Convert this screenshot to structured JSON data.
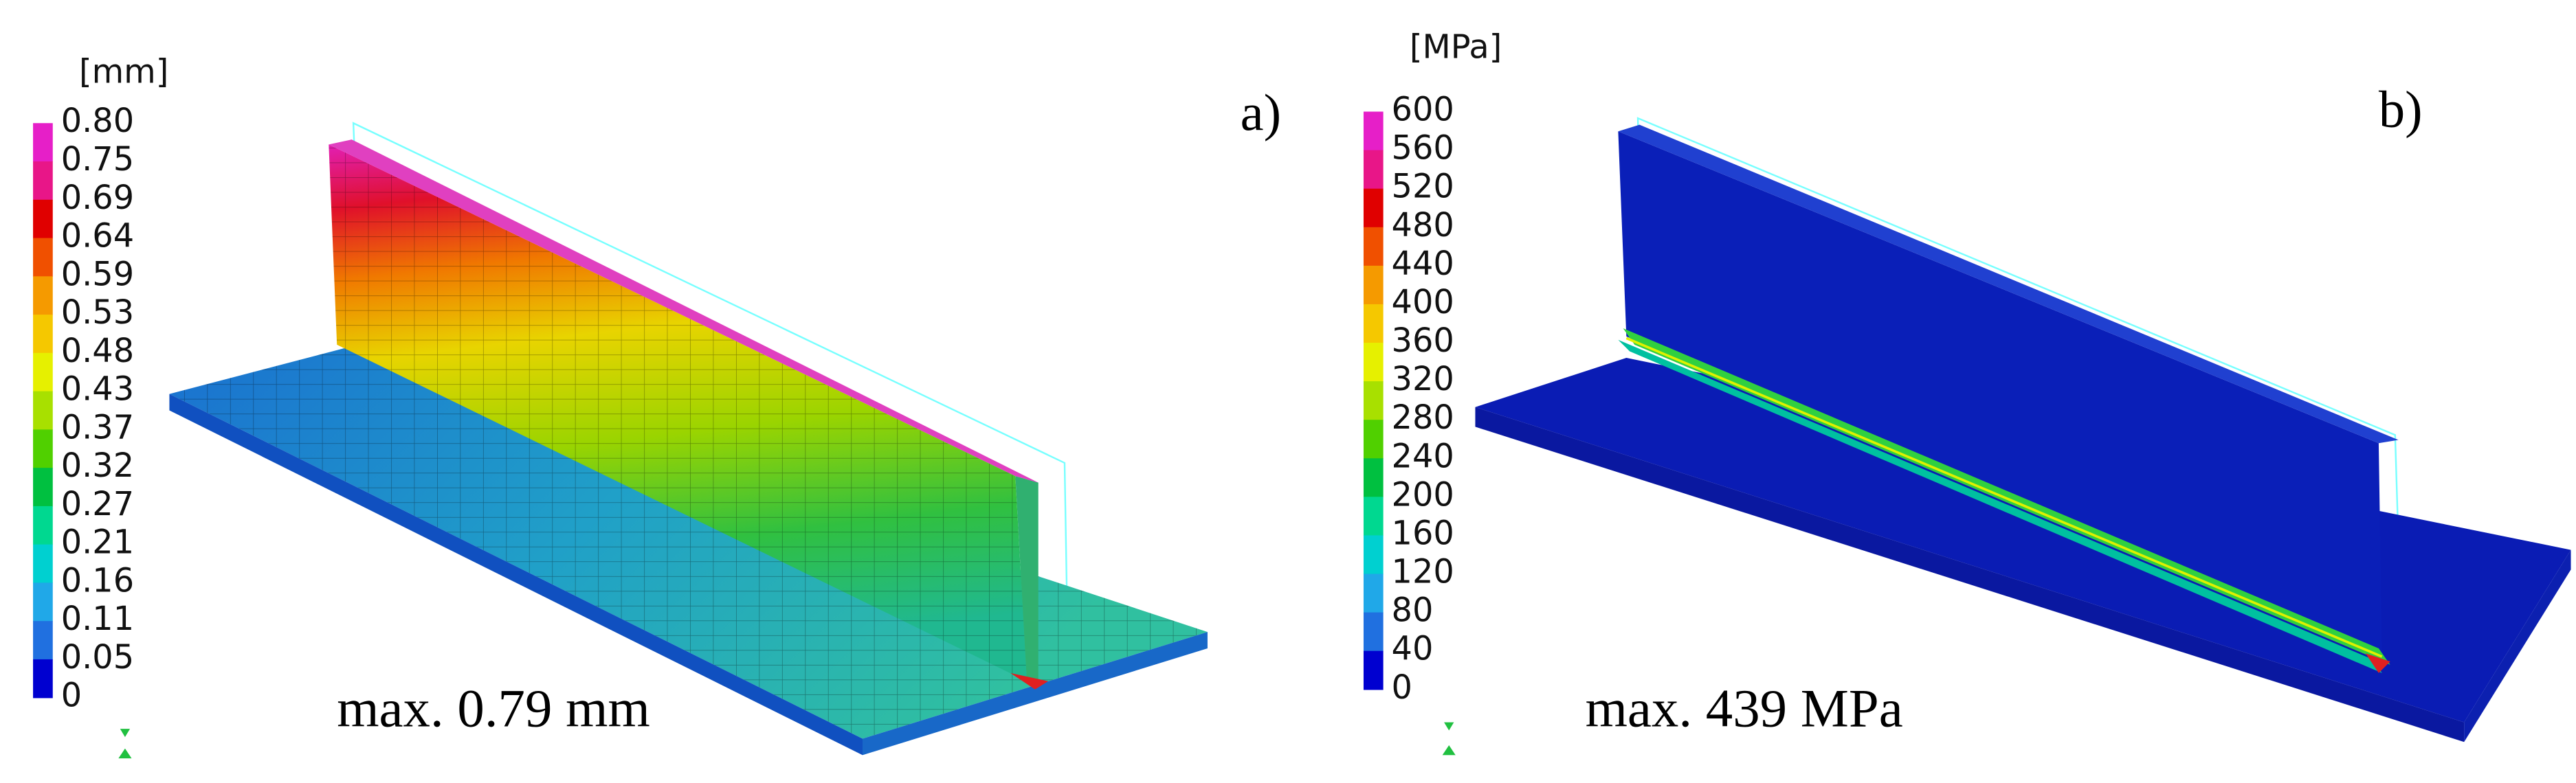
{
  "panels": [
    {
      "unit": "[mm]",
      "label": "a)",
      "annotation": "max. 0.79 mm",
      "legend_ticks": [
        "0.80",
        "0.75",
        "0.69",
        "0.64",
        "0.59",
        "0.53",
        "0.48",
        "0.43",
        "0.37",
        "0.32",
        "0.27",
        "0.21",
        "0.16",
        "0.11",
        "0.05",
        "0"
      ]
    },
    {
      "unit": "[MPa]",
      "label": "b)",
      "annotation": "max. 439 MPa",
      "legend_ticks": [
        "600",
        "560",
        "520",
        "480",
        "440",
        "400",
        "360",
        "320",
        "280",
        "240",
        "200",
        "160",
        "120",
        "80",
        "40",
        "0"
      ]
    }
  ]
}
